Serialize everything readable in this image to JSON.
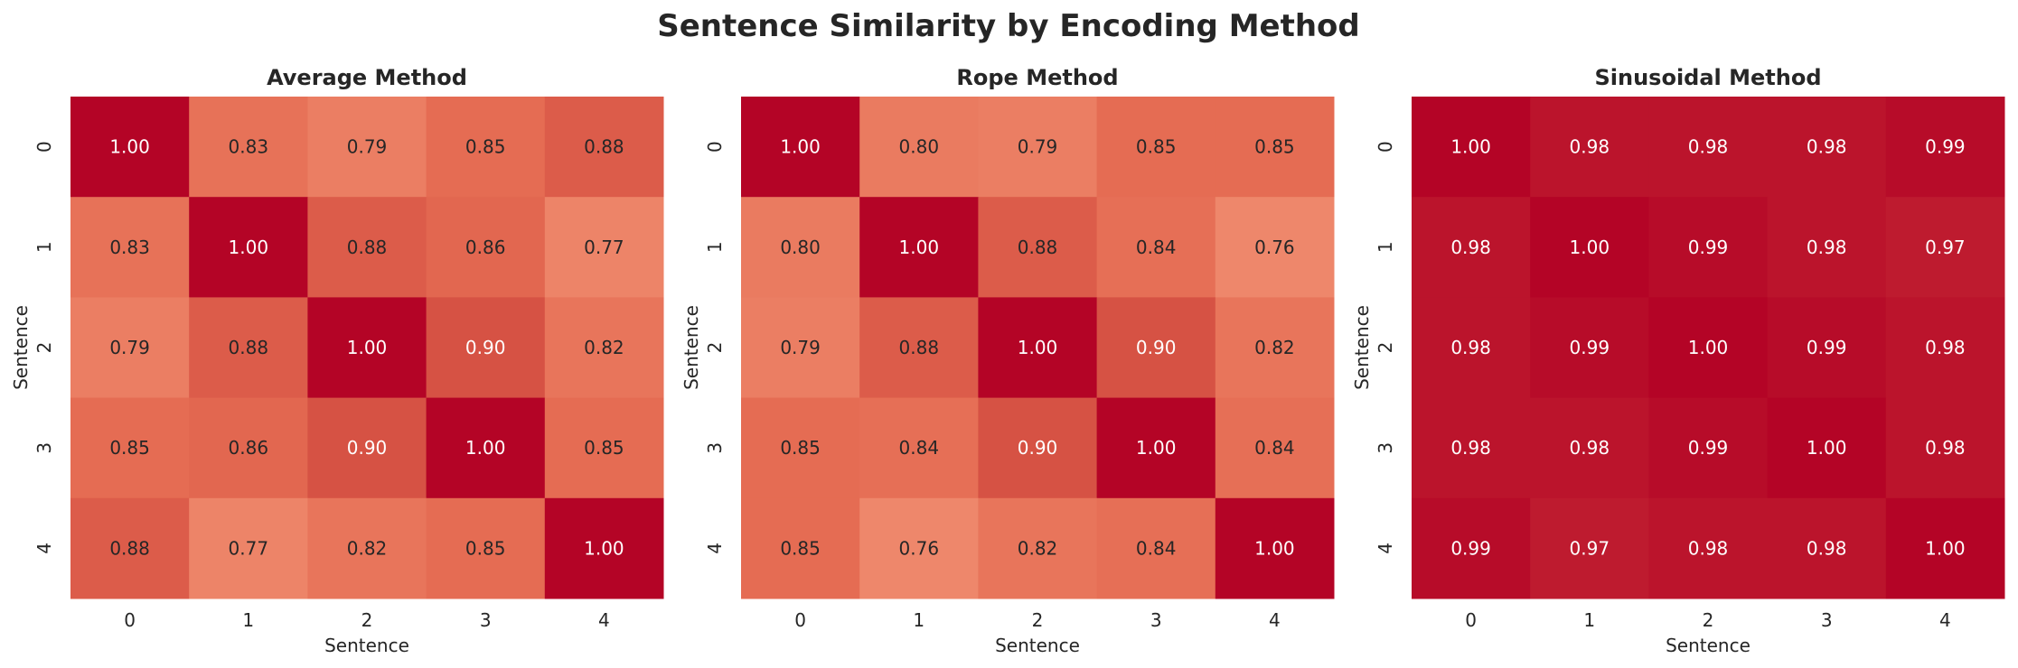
{
  "figure": {
    "title": "Sentence Similarity by Encoding Method"
  },
  "chart_data": [
    {
      "type": "heatmap",
      "title": "Average Method",
      "xlabel": "Sentence",
      "ylabel": "Sentence",
      "x": [
        "0",
        "1",
        "2",
        "3",
        "4"
      ],
      "y": [
        "0",
        "1",
        "2",
        "3",
        "4"
      ],
      "values": [
        [
          1.0,
          0.83,
          0.79,
          0.85,
          0.88
        ],
        [
          0.83,
          1.0,
          0.88,
          0.86,
          0.77
        ],
        [
          0.79,
          0.88,
          1.0,
          0.9,
          0.82
        ],
        [
          0.85,
          0.86,
          0.9,
          1.0,
          0.85
        ],
        [
          0.88,
          0.77,
          0.82,
          0.85,
          1.0
        ]
      ],
      "cmap": "coolwarm",
      "vmin": 0,
      "vmax": 1,
      "annotations": true,
      "colorbar": false
    },
    {
      "type": "heatmap",
      "title": "Rope Method",
      "xlabel": "Sentence",
      "ylabel": "Sentence",
      "x": [
        "0",
        "1",
        "2",
        "3",
        "4"
      ],
      "y": [
        "0",
        "1",
        "2",
        "3",
        "4"
      ],
      "values": [
        [
          1.0,
          0.8,
          0.79,
          0.85,
          0.85
        ],
        [
          0.8,
          1.0,
          0.88,
          0.84,
          0.76
        ],
        [
          0.79,
          0.88,
          1.0,
          0.9,
          0.82
        ],
        [
          0.85,
          0.84,
          0.9,
          1.0,
          0.84
        ],
        [
          0.85,
          0.76,
          0.82,
          0.84,
          1.0
        ]
      ],
      "cmap": "coolwarm",
      "vmin": 0,
      "vmax": 1,
      "annotations": true,
      "colorbar": false
    },
    {
      "type": "heatmap",
      "title": "Sinusoidal Method",
      "xlabel": "Sentence",
      "ylabel": "Sentence",
      "x": [
        "0",
        "1",
        "2",
        "3",
        "4"
      ],
      "y": [
        "0",
        "1",
        "2",
        "3",
        "4"
      ],
      "values": [
        [
          1.0,
          0.98,
          0.98,
          0.98,
          0.99
        ],
        [
          0.98,
          1.0,
          0.99,
          0.98,
          0.97
        ],
        [
          0.98,
          0.99,
          1.0,
          0.99,
          0.98
        ],
        [
          0.98,
          0.98,
          0.99,
          1.0,
          0.98
        ],
        [
          0.99,
          0.97,
          0.98,
          0.98,
          1.0
        ]
      ],
      "cmap": "coolwarm",
      "vmin": 0,
      "vmax": 1,
      "annotations": true,
      "colorbar": false
    }
  ]
}
